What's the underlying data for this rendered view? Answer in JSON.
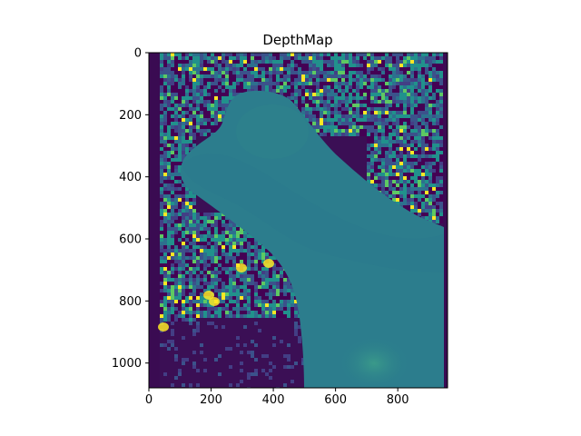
{
  "chart_data": {
    "type": "heatmap",
    "title": "DepthMap",
    "xlabel": "",
    "ylabel": "",
    "xlim": [
      0,
      960
    ],
    "ylim": [
      1080,
      0
    ],
    "x_ticks": [
      0,
      200,
      400,
      600,
      800
    ],
    "y_ticks": [
      0,
      200,
      400,
      600,
      800,
      1000
    ],
    "grid": false,
    "colormap": "viridis",
    "colors": {
      "background_dark": "#3b0f55",
      "mid_teal": "#2c7d8d",
      "noise_palette": [
        "#440154",
        "#3b528b",
        "#21918c",
        "#5ec962",
        "#fde725",
        "#2d708e",
        "#433e85"
      ]
    },
    "regions": [
      {
        "name": "main-depth-body",
        "level": 0.45
      },
      {
        "name": "upper-noise",
        "level": "mixed"
      },
      {
        "name": "lower-left-dark",
        "level": 0.1
      }
    ]
  }
}
